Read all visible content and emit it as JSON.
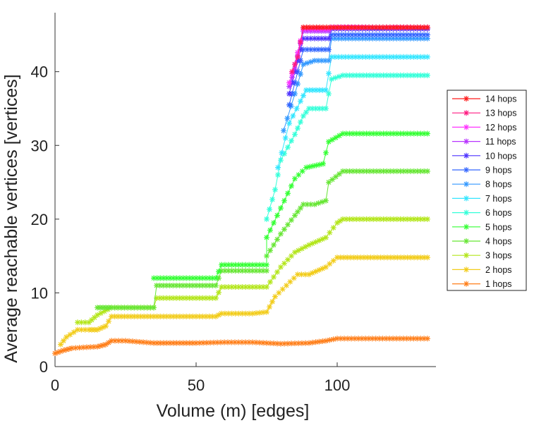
{
  "chart_data": {
    "type": "line",
    "title": "",
    "xlabel": "Volume (m) [edges]",
    "ylabel": "Average reachable vertices [vertices]",
    "xlim": [
      0,
      135
    ],
    "ylim": [
      0,
      48
    ],
    "xticks": [
      0,
      50,
      100
    ],
    "yticks": [
      0,
      10,
      20,
      30,
      40
    ],
    "grid": false,
    "legend_position": "right",
    "series": [
      {
        "name": "14 hops",
        "color": "#ff1a1a",
        "points": [
          [
            88,
            46
          ],
          [
            95,
            46
          ],
          [
            100,
            46
          ],
          [
            110,
            46
          ],
          [
            120,
            46
          ],
          [
            132,
            46
          ]
        ]
      },
      {
        "name": "13 hops",
        "color": "#ff1a80",
        "points": [
          [
            84,
            40
          ],
          [
            86,
            42
          ],
          [
            88,
            46
          ],
          [
            95,
            46
          ],
          [
            100,
            46
          ],
          [
            110,
            46
          ],
          [
            120,
            46
          ],
          [
            132,
            46
          ]
        ]
      },
      {
        "name": "12 hops",
        "color": "#ff33ff",
        "points": [
          [
            83,
            38.5
          ],
          [
            85,
            41
          ],
          [
            88,
            45.8
          ],
          [
            92,
            45.8
          ],
          [
            97,
            45.8
          ],
          [
            98,
            46
          ],
          [
            132,
            46
          ]
        ]
      },
      {
        "name": "11 hops",
        "color": "#b833ff",
        "points": [
          [
            83,
            38
          ],
          [
            85,
            40.5
          ],
          [
            88,
            45.5
          ],
          [
            92,
            45.5
          ],
          [
            97,
            45.5
          ],
          [
            98,
            46
          ],
          [
            132,
            46
          ]
        ]
      },
      {
        "name": "10 hops",
        "color": "#4d33ff",
        "points": [
          [
            83,
            37
          ],
          [
            85,
            40
          ],
          [
            88,
            44.5
          ],
          [
            92,
            44.5
          ],
          [
            97,
            44.5
          ],
          [
            98,
            45.8
          ],
          [
            132,
            45.8
          ]
        ]
      },
      {
        "name": "9 hops",
        "color": "#3366ff",
        "points": [
          [
            83,
            35.5
          ],
          [
            85,
            38.5
          ],
          [
            88,
            43
          ],
          [
            92,
            43
          ],
          [
            97,
            43
          ],
          [
            98,
            45
          ],
          [
            132,
            45
          ]
        ]
      },
      {
        "name": "8 hops",
        "color": "#3399ff",
        "points": [
          [
            81,
            32
          ],
          [
            85,
            37
          ],
          [
            88,
            41
          ],
          [
            92,
            41.5
          ],
          [
            97,
            41.5
          ],
          [
            98,
            44.5
          ],
          [
            132,
            44.5
          ]
        ]
      },
      {
        "name": "7 hops",
        "color": "#33e6ff",
        "points": [
          [
            79,
            27
          ],
          [
            83,
            33
          ],
          [
            87,
            36
          ],
          [
            89,
            37.5
          ],
          [
            96,
            37.5
          ],
          [
            98,
            42
          ],
          [
            132,
            42
          ]
        ]
      },
      {
        "name": "6 hops",
        "color": "#33ffd9",
        "points": [
          [
            75,
            20
          ],
          [
            78,
            24
          ],
          [
            80,
            28
          ],
          [
            85,
            31.5
          ],
          [
            88,
            34
          ],
          [
            90,
            35
          ],
          [
            96,
            35
          ],
          [
            98,
            39
          ],
          [
            102,
            39.5
          ],
          [
            132,
            39.5
          ]
        ]
      },
      {
        "name": "5 hops",
        "color": "#33ff33",
        "points": [
          [
            35,
            12
          ],
          [
            50,
            12
          ],
          [
            57,
            12
          ],
          [
            59,
            13.8
          ],
          [
            70,
            13.8
          ],
          [
            75,
            13.8
          ],
          [
            75,
            17.5
          ],
          [
            80,
            21.5
          ],
          [
            85,
            25.5
          ],
          [
            89,
            27
          ],
          [
            95,
            27.5
          ],
          [
            97,
            30.5
          ],
          [
            102,
            31.6
          ],
          [
            132,
            31.6
          ]
        ]
      },
      {
        "name": "4 hops",
        "color": "#66e633",
        "points": [
          [
            15,
            8
          ],
          [
            18,
            8
          ],
          [
            20,
            8
          ],
          [
            35,
            8
          ],
          [
            36,
            11
          ],
          [
            50,
            11
          ],
          [
            57,
            11
          ],
          [
            59,
            13
          ],
          [
            70,
            13
          ],
          [
            75,
            13
          ],
          [
            75,
            15
          ],
          [
            80,
            18
          ],
          [
            85,
            20.5
          ],
          [
            88,
            22
          ],
          [
            92,
            22
          ],
          [
            96,
            22.5
          ],
          [
            97,
            25
          ],
          [
            102,
            26.5
          ],
          [
            132,
            26.5
          ]
        ]
      },
      {
        "name": "3 hops",
        "color": "#b3e61a",
        "points": [
          [
            8,
            6
          ],
          [
            12,
            6
          ],
          [
            15,
            7
          ],
          [
            20,
            8
          ],
          [
            35,
            8
          ],
          [
            36,
            9.3
          ],
          [
            50,
            9.3
          ],
          [
            57,
            9.3
          ],
          [
            59,
            10.8
          ],
          [
            70,
            10.8
          ],
          [
            75,
            10.8
          ],
          [
            80,
            13.5
          ],
          [
            85,
            15.5
          ],
          [
            90,
            16.5
          ],
          [
            96,
            17.5
          ],
          [
            100,
            19.5
          ],
          [
            102,
            20
          ],
          [
            132,
            20
          ]
        ]
      },
      {
        "name": "2 hops",
        "color": "#f2cc1a",
        "points": [
          [
            2,
            3
          ],
          [
            4,
            4
          ],
          [
            8,
            5
          ],
          [
            12,
            5
          ],
          [
            15,
            5
          ],
          [
            18,
            5.5
          ],
          [
            20,
            6.8
          ],
          [
            35,
            6.8
          ],
          [
            50,
            6.8
          ],
          [
            57,
            6.8
          ],
          [
            59,
            7.2
          ],
          [
            70,
            7.2
          ],
          [
            75,
            7.4
          ],
          [
            78,
            9.5
          ],
          [
            82,
            11
          ],
          [
            86,
            12.5
          ],
          [
            90,
            12.5
          ],
          [
            96,
            13.5
          ],
          [
            100,
            14.8
          ],
          [
            132,
            14.8
          ]
        ]
      },
      {
        "name": "1 hops",
        "color": "#ff7f1a",
        "points": [
          [
            0,
            1.8
          ],
          [
            3,
            2.2
          ],
          [
            6,
            2.5
          ],
          [
            10,
            2.6
          ],
          [
            15,
            2.7
          ],
          [
            18,
            3
          ],
          [
            20,
            3.5
          ],
          [
            25,
            3.5
          ],
          [
            35,
            3.2
          ],
          [
            50,
            3.2
          ],
          [
            60,
            3.3
          ],
          [
            70,
            3.3
          ],
          [
            80,
            3.1
          ],
          [
            90,
            3.2
          ],
          [
            96,
            3.5
          ],
          [
            100,
            3.8
          ],
          [
            110,
            3.8
          ],
          [
            132,
            3.8
          ]
        ]
      }
    ]
  }
}
